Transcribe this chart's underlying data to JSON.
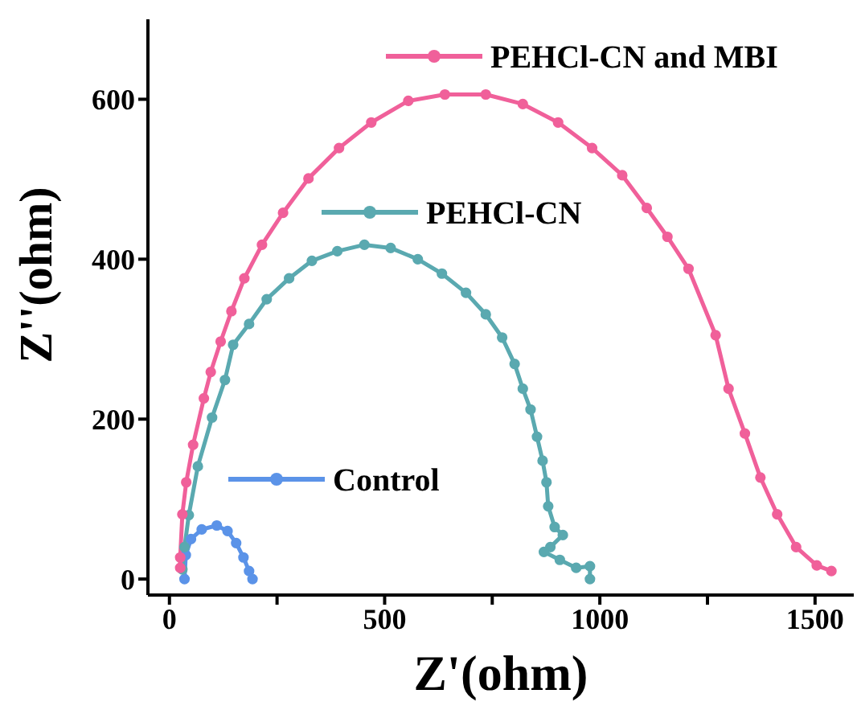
{
  "chart_data": {
    "type": "line",
    "xlabel": "Z'(ohm)",
    "ylabel": "Z''(ohm)",
    "xlim": [
      -50,
      1590
    ],
    "xticks": [
      0,
      {
        "value": 250,
        "label": null
      },
      500,
      {
        "value": 750,
        "label": null
      },
      1000,
      {
        "value": 1250,
        "label": null
      },
      1500
    ],
    "ylim": [
      -20,
      700
    ],
    "yticks": [
      0,
      200,
      400,
      600
    ],
    "legend": "top right",
    "marker": "circle",
    "line_style": "solid",
    "series": [
      {
        "name": "PEHCl-CN and MBI",
        "color": "#f0609a",
        "x": [
          25,
          25,
          30,
          39,
          55,
          80,
          96,
          119,
          144,
          174,
          215,
          264,
          323,
          394,
          469,
          555,
          640,
          735,
          821,
          903,
          982,
          1052,
          1109,
          1157,
          1206,
          1269,
          1299,
          1337,
          1373,
          1412,
          1456,
          1504,
          1538
        ],
        "values": [
          14,
          27,
          81,
          121,
          168,
          226,
          259,
          297,
          335,
          376,
          418,
          458,
          501,
          539,
          571,
          598,
          606,
          606,
          594,
          571,
          539,
          505,
          464,
          428,
          388,
          305,
          238,
          182,
          127,
          81,
          40,
          17,
          10
        ]
      },
      {
        "name": "PEHCl-CN",
        "color": "#5aa9b0",
        "x": [
          30,
          35,
          45,
          66,
          99,
          129,
          148,
          185,
          226,
          278,
          331,
          390,
          453,
          514,
          577,
          633,
          689,
          735,
          773,
          802,
          821,
          839,
          854,
          867,
          876,
          880,
          895,
          914,
          885,
          870,
          907,
          945,
          977,
          977
        ],
        "values": [
          12,
          40,
          80,
          141,
          202,
          249,
          293,
          319,
          350,
          376,
          398,
          410,
          418,
          414,
          400,
          382,
          358,
          331,
          302,
          269,
          238,
          212,
          178,
          148,
          121,
          91,
          65,
          55,
          40,
          34,
          24,
          14,
          16,
          0
        ]
      },
      {
        "name": "Control",
        "color": "#5b93e8",
        "x": [
          35,
          38,
          50,
          75,
          110,
          135,
          155,
          172,
          185,
          193
        ],
        "values": [
          0,
          30,
          50,
          62,
          67,
          60,
          45,
          27,
          10,
          0
        ]
      }
    ]
  }
}
